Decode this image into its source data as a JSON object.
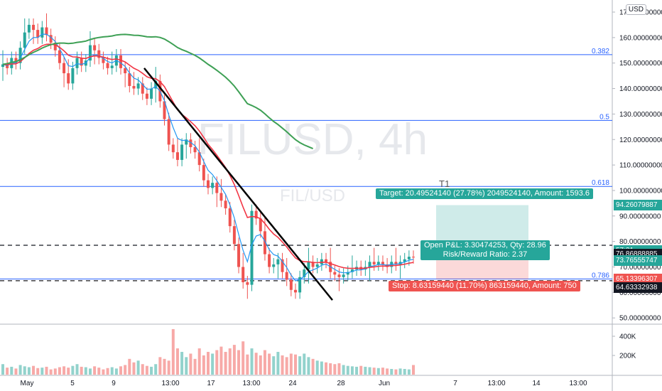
{
  "chart_data": {
    "type": "candlestick",
    "symbol": "FILUSD",
    "interval": "4h",
    "watermark": "FILUSD, 4h",
    "sub_watermark": "FIL/USD",
    "currency": "USD",
    "y_ticks": [
      "170.00000000",
      "160.00000000",
      "150.00000000",
      "140.00000000",
      "130.00000000",
      "120.00000000",
      "110.00000000",
      "100.00000000",
      "90.00000000",
      "80.00000000",
      "70.00000000",
      "60.00000000",
      "50.00000000"
    ],
    "y_tick_values": [
      170,
      160,
      150,
      140,
      130,
      120,
      110,
      100,
      90,
      80,
      70,
      60,
      50
    ],
    "ylim": [
      46,
      173
    ],
    "x_labels": [
      "May",
      "5",
      "9",
      "13:00",
      "17",
      "13:00",
      "24",
      "28",
      "Jun",
      "7",
      "13:00",
      "14",
      "13:00"
    ],
    "volume_ticks": [
      "400K",
      "200K"
    ],
    "fib_levels": [
      {
        "label": "0.382",
        "price": 153.3
      },
      {
        "label": "0.5",
        "price": 127.5
      },
      {
        "label": "0.618",
        "price": 101.6
      },
      {
        "label": "0.786",
        "price": 65.3
      }
    ],
    "dashed_levels": [
      78.5,
      64.6
    ],
    "price_tags": [
      {
        "text": "94.26079887",
        "price": 94.26,
        "color": "#26a69a"
      },
      {
        "text": "57:21",
        "price": 76.5,
        "color": "#26a69a",
        "small": true
      },
      {
        "text": "76.86888885",
        "price": 74.9,
        "color": "#131722"
      },
      {
        "text": "73.76555747",
        "price": 72.6,
        "color": "#26a69a"
      },
      {
        "text": "65.13396307",
        "price": 65.13,
        "color": "#ef5350"
      },
      {
        "text": "64.63332938",
        "price": 61.9,
        "color": "#131722"
      }
    ],
    "position": {
      "entry": 73.77,
      "target": 94.26,
      "stop": 65.13,
      "target_text": "Target: 20.49524140 (27.78%) 2049524140, Amount: 1593.6",
      "pnl_text": "Open P&L: 3.30474253, Qty: 28.96",
      "rr_text": "Risk/Reward Ratio: 2.37",
      "stop_text": "Stop: 8.63159440 (11.70%) 863159440, Amount: 750",
      "tag": "T1"
    },
    "trendline": {
      "start_price": 148,
      "end_price": 57
    },
    "closes": [
      149.5,
      148,
      152,
      150,
      156,
      162,
      165,
      163,
      160,
      164,
      161,
      158,
      155,
      150,
      146,
      142,
      148,
      152,
      149,
      151,
      157,
      155,
      152,
      150,
      148,
      149,
      153,
      148,
      146,
      141,
      140,
      142,
      138,
      136,
      140,
      143,
      135,
      128,
      118,
      115,
      112,
      118,
      120,
      117,
      115,
      110,
      104,
      101,
      103,
      99,
      96,
      93,
      86,
      79,
      70,
      64,
      63,
      92,
      89,
      84,
      75,
      70,
      71,
      73,
      68,
      65,
      61,
      60,
      66,
      69,
      72,
      70,
      71,
      73,
      72,
      68,
      67,
      66,
      67,
      68,
      69,
      70,
      69,
      70,
      72,
      71,
      72,
      71,
      70,
      72,
      71,
      72,
      73,
      74,
      73.8
    ],
    "volumes": [
      120,
      80,
      90,
      70,
      110,
      95,
      85,
      100,
      75,
      80,
      90,
      60,
      70,
      85,
      95,
      80,
      100,
      120,
      90,
      85,
      70,
      95,
      80,
      60,
      75,
      85,
      70,
      95,
      110,
      180,
      140,
      160,
      120,
      100,
      90,
      120,
      200,
      180,
      160,
      520,
      300,
      260,
      200,
      240,
      180,
      300,
      220,
      260,
      240,
      280,
      320,
      260,
      300,
      340,
      280,
      380,
      230,
      300,
      250,
      220,
      280,
      240,
      210,
      260,
      220,
      200,
      240,
      230,
      210,
      240,
      200,
      180,
      160,
      150,
      140,
      130,
      120,
      130,
      110,
      100,
      95,
      90,
      100,
      90,
      85,
      80,
      75,
      80,
      70,
      65,
      60,
      70,
      65,
      60,
      110
    ],
    "ema_fast_label": "",
    "ema_slow_label": ""
  }
}
